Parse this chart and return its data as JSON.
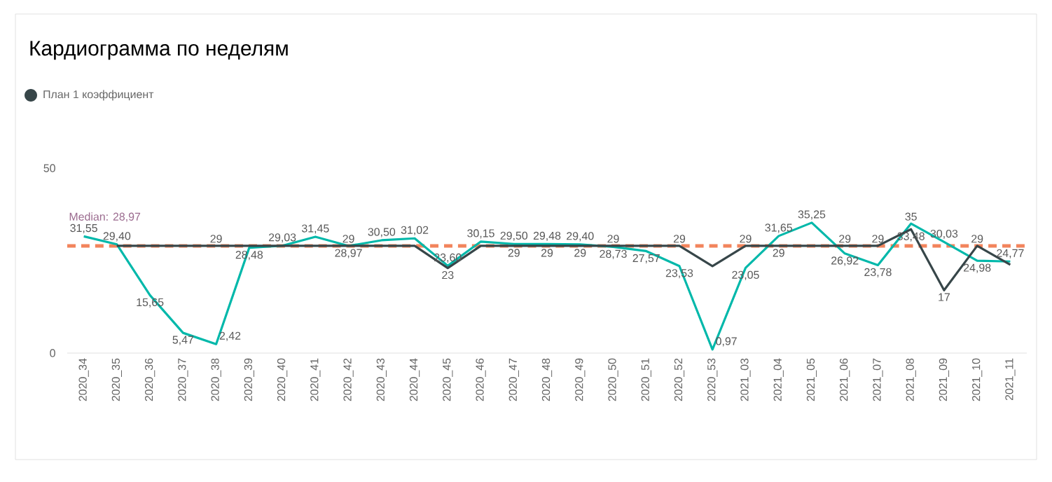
{
  "chart_data": {
    "type": "line",
    "title": "Кардиограмма по неделям",
    "categories": [
      "2020_34",
      "2020_35",
      "2020_36",
      "2020_37",
      "2020_38",
      "2020_39",
      "2020_40",
      "2020_41",
      "2020_42",
      "2020_43",
      "2020_44",
      "2020_45",
      "2020_46",
      "2020_47",
      "2020_48",
      "2020_49",
      "2020_50",
      "2020_51",
      "2020_52",
      "2020_53",
      "2021_03",
      "2021_04",
      "2021_05",
      "2021_06",
      "2021_07",
      "2021_08",
      "2021_09",
      "2021_10",
      "2021_11"
    ],
    "series": [
      {
        "color": "#01b8aa",
        "values": [
          31.55,
          29.4,
          15.65,
          5.47,
          2.42,
          28.48,
          29.03,
          31.45,
          28.97,
          30.5,
          31.02,
          23.6,
          30.15,
          29.5,
          29.48,
          29.4,
          28.73,
          27.57,
          23.53,
          0.97,
          23.05,
          31.65,
          35.25,
          26.92,
          23.78,
          35,
          30.03,
          24.98,
          24.77
        ],
        "value_labels": [
          "31,55",
          "29,40",
          "15,65",
          "5,47",
          "2,42",
          "28,48",
          "29,03",
          "31,45",
          "28,97",
          "30,50",
          "31,02",
          "23,60",
          "30,15",
          "29,50",
          "29,48",
          "29,40",
          "28,73",
          "27,57",
          "23,53",
          "0,97",
          "23,05",
          "31,65",
          "35,25",
          "26,92",
          "23,78",
          "35",
          "30,03",
          "24,98",
          "24,77"
        ]
      },
      {
        "name": "План 1 коэффициент",
        "color": "#374649",
        "values": [
          null,
          29,
          29,
          29,
          29,
          29,
          29,
          29,
          29,
          29,
          29,
          23,
          29,
          29,
          29,
          29,
          29,
          29,
          29,
          23.5,
          29,
          29,
          29,
          29,
          29,
          33.48,
          17,
          29,
          23.9
        ],
        "value_labels": [
          null,
          null,
          null,
          null,
          "29",
          null,
          null,
          null,
          "29",
          null,
          null,
          "23",
          null,
          "29",
          "29",
          "29",
          "29",
          null,
          "29",
          null,
          "29",
          "29",
          null,
          "29",
          "29",
          "33,48",
          "17",
          "29",
          null
        ]
      }
    ],
    "ylim": [
      0,
      50
    ],
    "yticks": [
      0,
      50
    ],
    "legend": "top left",
    "ref_lines": [
      {
        "axis": "y",
        "value": 28.97,
        "label": "Median: 28,97",
        "color": "#f2845c",
        "line_style": "dashed"
      }
    ]
  }
}
